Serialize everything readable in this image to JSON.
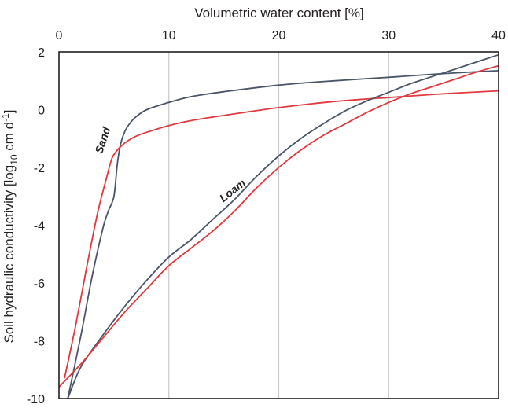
{
  "chart_data": {
    "type": "line",
    "title": "",
    "xlabel": "Volumetric water content [%]",
    "ylabel": "Soil hydraulic conductivity [log10 cm d-1]",
    "ylabel_parts": {
      "prefix": "Soil hydraulic  conductivity  [log",
      "sub": "10",
      "middle": " cm d",
      "sup": "-1",
      "suffix": "]"
    },
    "x_axis_position": "top",
    "xlim": [
      0,
      40
    ],
    "ylim": [
      -10,
      2
    ],
    "xticks": [
      0,
      10,
      20,
      30,
      40
    ],
    "yticks": [
      2,
      0,
      -2,
      -4,
      -6,
      -8,
      -10
    ],
    "grid": "vertical",
    "legend": "none",
    "annotations": [
      {
        "text": "Sand",
        "x": 4.3,
        "y": -1.1,
        "rotate": -72
      },
      {
        "text": "Loam",
        "x": 16,
        "y": -2.9,
        "rotate": -38
      }
    ],
    "series": [
      {
        "color": "#4a5568",
        "x": [
          0.8,
          2,
          3,
          4,
          4.5,
          5,
          5.3,
          5.6,
          6,
          6.5,
          7,
          8,
          10,
          12,
          15,
          20,
          25,
          30,
          35,
          40
        ],
        "y": [
          -10,
          -7.8,
          -5.8,
          -4.1,
          -3.5,
          -3.0,
          -1.9,
          -1.2,
          -0.75,
          -0.45,
          -0.25,
          0.0,
          0.25,
          0.45,
          0.62,
          0.85,
          1.0,
          1.12,
          1.25,
          1.35
        ]
      },
      {
        "color": "#e03a3e",
        "x": [
          0.5,
          1.5,
          2.5,
          3.5,
          4.3,
          4.8,
          5.2,
          5.6,
          6,
          6.5,
          7,
          8,
          10,
          12,
          15,
          20,
          25,
          30,
          35,
          40
        ],
        "y": [
          -9.3,
          -7.5,
          -5.5,
          -3.6,
          -2.4,
          -1.7,
          -1.45,
          -1.28,
          -1.15,
          -1.02,
          -0.92,
          -0.78,
          -0.55,
          -0.38,
          -0.2,
          0.07,
          0.28,
          0.42,
          0.55,
          0.65
        ]
      },
      {
        "color": "#4a5568",
        "x": [
          0.8,
          2,
          4,
          6,
          8,
          10,
          12,
          14,
          16,
          18,
          20,
          22,
          24,
          26,
          28,
          30,
          32,
          34,
          36,
          38,
          40
        ],
        "y": [
          -10,
          -8.9,
          -7.8,
          -6.8,
          -5.9,
          -5.1,
          -4.5,
          -3.8,
          -3.1,
          -2.3,
          -1.6,
          -1.0,
          -0.5,
          -0.05,
          0.3,
          0.6,
          0.9,
          1.15,
          1.4,
          1.65,
          1.9
        ]
      },
      {
        "color": "#e03a3e",
        "x": [
          0,
          2,
          4,
          6,
          8,
          10,
          12,
          14,
          16,
          18,
          20,
          22,
          24,
          26,
          28,
          30,
          32,
          34,
          36,
          38,
          40
        ],
        "y": [
          -9.6,
          -8.8,
          -7.9,
          -7.0,
          -6.2,
          -5.4,
          -4.8,
          -4.2,
          -3.5,
          -2.7,
          -2.0,
          -1.4,
          -0.9,
          -0.5,
          -0.1,
          0.25,
          0.55,
          0.8,
          1.05,
          1.3,
          1.52
        ]
      }
    ]
  }
}
